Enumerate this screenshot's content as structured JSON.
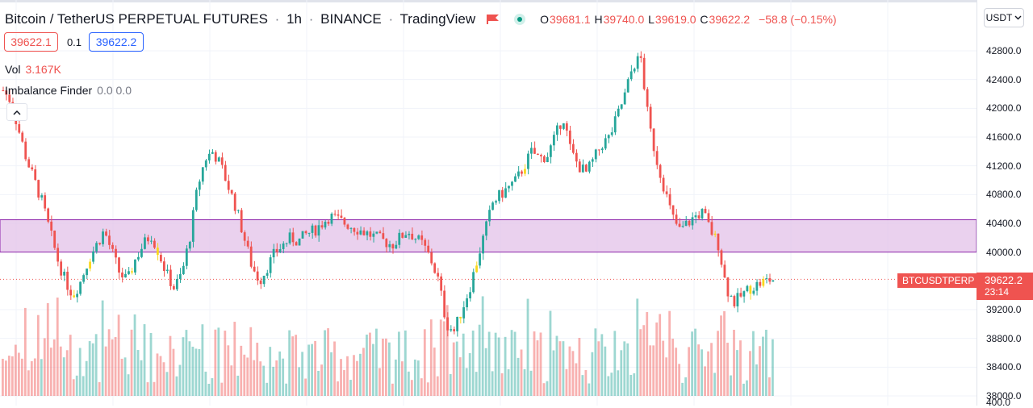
{
  "header": {
    "symbol": "Bitcoin / TetherUS PERPETUAL FUTURES",
    "interval": "1h",
    "exchange": "BINANCE",
    "source": "TradingView",
    "open_label": "O",
    "open_value": "39681.1",
    "high_label": "H",
    "high_value": "39740.0",
    "low_label": "L",
    "low_value": "39619.0",
    "close_label": "C",
    "close_value": "39622.2",
    "change": "−58.8 (−0.15%)",
    "flag_icon": "flag-icon",
    "status_icon": "market-open-dot-icon"
  },
  "trade": {
    "bid": "39622.1",
    "spread": "0.1",
    "ask": "39622.2"
  },
  "indicators": {
    "vol_label": "Vol",
    "vol_value": "3.167K",
    "imbalance_label": "Imbalance Finder",
    "imbalance_values": "0.0  0.0",
    "collapse_icon": "chevron-up-icon"
  },
  "axis": {
    "currency": "USDT",
    "ticks": [
      "42800.0",
      "42400.0",
      "42000.0",
      "41600.0",
      "41200.0",
      "40800.0",
      "40400.0",
      "40000.0",
      "39200.0",
      "38800.0",
      "38400.0",
      "38000.0",
      "400.0"
    ]
  },
  "last_price": {
    "symbol": "BTCUSDTPERP",
    "price": "39622.2",
    "countdown": "23:14"
  },
  "colors": {
    "up": "#26a69a",
    "down": "#ef5350",
    "highlight": "#f9d71c",
    "zone": "#e1bee7",
    "zone_border": "#8e24aa"
  },
  "chart_data": {
    "type": "candlestick",
    "interval": "1h",
    "ylim": [
      37900,
      43200
    ],
    "zone": [
      40000,
      40450
    ],
    "close_series": [
      42250,
      42100,
      41700,
      41300,
      41000,
      40700,
      40300,
      39900,
      39600,
      39400,
      39600,
      39900,
      40100,
      40300,
      40000,
      39700,
      39600,
      39900,
      40100,
      40250,
      40000,
      39700,
      39500,
      39700,
      40200,
      40900,
      41300,
      41400,
      41200,
      40900,
      40600,
      40200,
      39800,
      39600,
      39800,
      40000,
      40100,
      40200,
      40150,
      40250,
      40300,
      40400,
      40500,
      40450,
      40400,
      40350,
      40300,
      40250,
      40200,
      40150,
      40100,
      40200,
      40300,
      40200,
      40100,
      39900,
      39600,
      39000,
      38900,
      39200,
      39500,
      39900,
      40300,
      40700,
      40800,
      40900,
      41000,
      41200,
      41400,
      41300,
      41350,
      41600,
      41900,
      41400,
      41200,
      41100,
      41300,
      41500,
      41600,
      41900,
      42200,
      42600,
      42700,
      41800,
      41300,
      40900,
      40500,
      40300,
      40400,
      40500,
      40550,
      40300,
      40100,
      39500,
      39300,
      39400,
      39500,
      39550,
      39600,
      39620
    ]
  }
}
